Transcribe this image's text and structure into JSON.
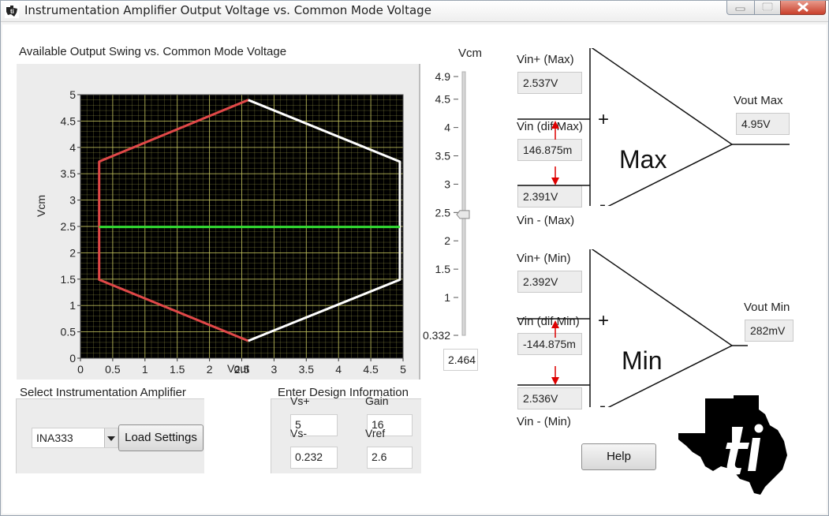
{
  "window": {
    "title": "Instrumentation Amplifier Output Voltage vs. Common Mode Voltage"
  },
  "chart_data": {
    "type": "line",
    "title": "Available Output Swing vs. Common Mode Voltage",
    "xlabel": "Vout",
    "ylabel": "Vcm",
    "xlim": [
      0,
      5
    ],
    "ylim": [
      0,
      5
    ],
    "x_ticks": [
      "0",
      "0.5",
      "1",
      "1.5",
      "2",
      "2.5",
      "3",
      "3.5",
      "4",
      "4.5",
      "5"
    ],
    "y_ticks": [
      "0",
      "0.5",
      "1",
      "1.5",
      "2",
      "2.5",
      "3",
      "3.5",
      "4",
      "4.5",
      "5"
    ],
    "grid": true,
    "background": "#000000",
    "series": [
      {
        "color": "#e04848",
        "x": [
          2.6,
          0.29,
          0.29,
          0.29,
          0.29,
          2.6
        ],
        "y": [
          0.33,
          1.49,
          2.49,
          2.49,
          3.73,
          4.9
        ]
      },
      {
        "color": "#ffffff",
        "x": [
          2.6,
          4.95,
          4.95,
          4.95,
          4.95,
          2.6
        ],
        "y": [
          4.9,
          3.73,
          2.49,
          2.49,
          1.49,
          0.33
        ]
      },
      {
        "color": "#33dd33",
        "x": [
          0.29,
          4.95
        ],
        "y": [
          2.49,
          2.49
        ]
      }
    ]
  },
  "vcm_slider": {
    "label": "Vcm",
    "ticks": [
      "4.9",
      "4.5",
      "4",
      "3.5",
      "3",
      "2.5",
      "2",
      "1.5",
      "1",
      "0.332"
    ],
    "tick_values": [
      4.9,
      4.5,
      4,
      3.5,
      3,
      2.5,
      2,
      1.5,
      1,
      0.332
    ],
    "min": 0.332,
    "max": 4.9,
    "value": 2.464,
    "value_display": "2.464"
  },
  "max_amp": {
    "vin_plus_label": "Vin+ (Max)",
    "vin_plus": "2.537V",
    "vin_dif_label": "Vin (dif Max)",
    "vin_dif": "146.875m",
    "vin_minus": "2.391V",
    "vin_minus_label": "Vin - (Max)",
    "name": "Max",
    "plus": "+",
    "minus": "-",
    "vout_label": "Vout Max",
    "vout": "4.95V"
  },
  "min_amp": {
    "vin_plus_label": "Vin+ (Min)",
    "vin_plus": "2.392V",
    "vin_dif_label": "Vin (dif Min)",
    "vin_dif": "-144.875m",
    "vin_minus": "2.536V",
    "vin_minus_label": "Vin - (Min)",
    "name": "Min",
    "plus": "+",
    "minus": "-",
    "vout_label": "Vout Min",
    "vout": "282mV"
  },
  "amplifier_select": {
    "label": "Select Instrumentation Amplifier",
    "selected": "INA333",
    "load_button": "Load Settings"
  },
  "design_info": {
    "label": "Enter Design Information",
    "vs_plus_label": "Vs+",
    "vs_plus": "5",
    "vs_minus_label": "Vs-",
    "vs_minus": "0.232",
    "gain_label": "Gain",
    "gain": "16",
    "vref_label": "Vref",
    "vref": "2.6"
  },
  "help_button": "Help",
  "colors": {
    "red_arrow": "#dd0000",
    "plot_grid": "#c8c860",
    "plot_bg": "#000000"
  }
}
